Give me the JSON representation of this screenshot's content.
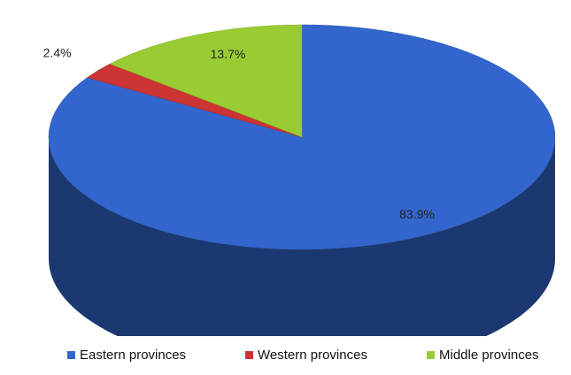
{
  "chart_data": {
    "type": "pie",
    "style": "3d",
    "categories": [
      "Eastern provinces",
      "Western provinces",
      "Middle provinces"
    ],
    "values": [
      83.9,
      2.4,
      13.7
    ],
    "unit": "%",
    "data_labels": [
      "83.9%",
      "2.4%",
      "13.7%"
    ],
    "colors": [
      "#3366cc",
      "#cc3333",
      "#99cc33"
    ],
    "legend_position": "bottom",
    "title": ""
  }
}
